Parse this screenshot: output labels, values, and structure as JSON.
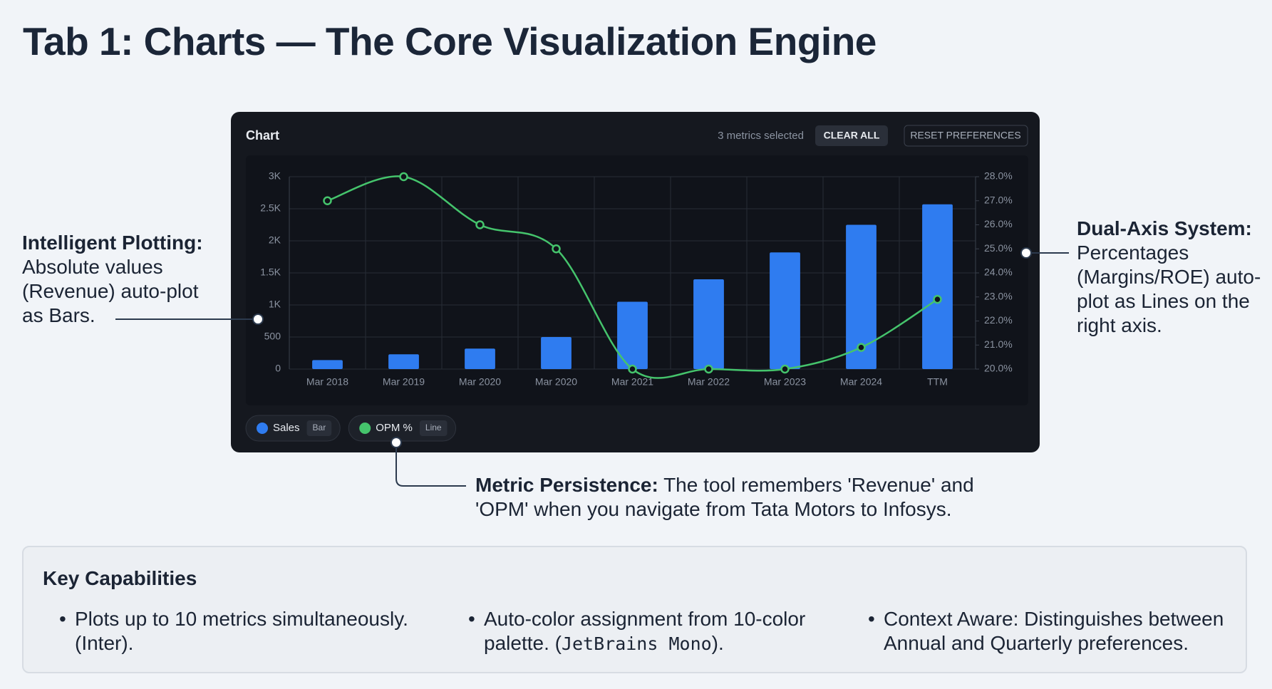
{
  "title": "Tab 1: Charts — The Core Visualization Engine",
  "panel": {
    "title": "Chart",
    "status": "3 metrics selected",
    "buttons": [
      "CLEAR ALL",
      "RESET PREFERENCES"
    ]
  },
  "chart_data": {
    "type": "combo",
    "categories": [
      "Mar 2018",
      "Mar 2019",
      "Mar 2020",
      "Mar 2020",
      "Mar 2021",
      "Mar 2022",
      "Mar 2023",
      "Mar 2024",
      "TTM"
    ],
    "series": [
      {
        "name": "Sales",
        "kind": "Bar",
        "color": "#2f7cf0",
        "values": [
          140,
          230,
          320,
          500,
          1050,
          1400,
          1820,
          2250,
          2570
        ]
      },
      {
        "name": "OPM %",
        "kind": "Line",
        "color": "#45c46c",
        "axis": "y2",
        "values": [
          27.0,
          28.0,
          26.0,
          25.0,
          20.0,
          20.0,
          20.0,
          20.9,
          22.9
        ]
      }
    ],
    "ylim": [
      0,
      3000
    ],
    "yticks": [
      0,
      500,
      {
        "value": 1000,
        "label": "1K"
      },
      {
        "value": 1500,
        "label": "1.5K"
      },
      {
        "value": 2000,
        "label": "2K"
      },
      {
        "value": 2500,
        "label": "2.5K"
      },
      {
        "value": 3000,
        "label": "3K"
      }
    ],
    "y2lim": [
      20,
      28
    ],
    "y2ticks": [
      {
        "value": 20,
        "label": "20.0%"
      },
      {
        "value": 21,
        "label": "21.0%"
      },
      {
        "value": 22,
        "label": "22.0%"
      },
      {
        "value": 23,
        "label": "23.0%"
      },
      {
        "value": 24,
        "label": "24.0%"
      },
      {
        "value": 25,
        "label": "25.0%"
      },
      {
        "value": 26,
        "label": "26.0%"
      },
      {
        "value": 27,
        "label": "27.0%"
      },
      {
        "value": 28,
        "label": "28.0%"
      }
    ],
    "grid": true
  },
  "annotations": [
    {
      "heading": "Intelligent Plotting:",
      "text": "Absolute values (Revenue) auto-plot as Bars."
    },
    {
      "heading": "Dual-Axis System:",
      "text": "Percentages (Margins/ROE) auto-plot as Lines on the right axis."
    },
    {
      "heading": "Metric Persistence:",
      "text": "The tool remembers 'Revenue' and 'OPM' when you navigate from Tata Motors to Infosys."
    }
  ],
  "key_capabilities": {
    "heading": "Key Capabilities",
    "items": [
      [
        "Plots up to 10 metrics simultaneously. (Inter)."
      ],
      [
        "Auto-color assignment from 10-color palette. (",
        "JetBrains Mono",
        ")."
      ],
      [
        "Context Aware: Distinguishes between Annual and Quarterly preferences."
      ]
    ]
  }
}
